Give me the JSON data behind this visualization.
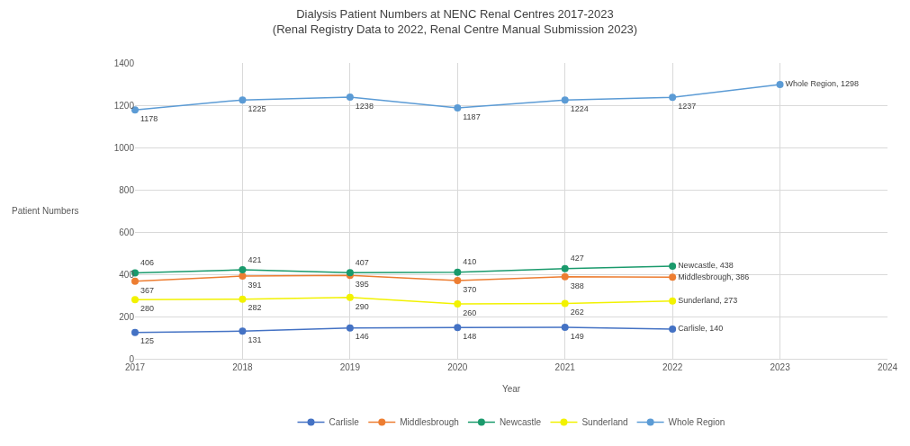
{
  "chart_data": {
    "type": "line",
    "title": "Dialysis Patient Numbers at NENC Renal Centres 2017-2023",
    "subtitle": "(Renal Registry Data to 2022, Renal Centre Manual Submission 2023)",
    "xlabel": "Year",
    "ylabel": "Patient Numbers",
    "x": [
      2017,
      2018,
      2019,
      2020,
      2021,
      2022,
      2023
    ],
    "xlim": [
      2017,
      2024
    ],
    "xticks": [
      2017,
      2018,
      2019,
      2020,
      2021,
      2022,
      2023,
      2024
    ],
    "ylim": [
      0,
      1400
    ],
    "yticks": [
      0,
      200,
      400,
      600,
      800,
      1000,
      1200,
      1400
    ],
    "grid": true,
    "legend": "bottom",
    "marker": "circle",
    "line_style": "solid",
    "series": [
      {
        "name": "Carlisle",
        "color": "#4472c4",
        "values": [
          125,
          131,
          146,
          148,
          149,
          140,
          null
        ],
        "value_labels": [
          "125",
          "131",
          "146",
          "148",
          "149",
          "Carlisle, 140",
          null
        ]
      },
      {
        "name": "Middlesbrough",
        "color": "#ed7d31",
        "values": [
          367,
          391,
          395,
          370,
          388,
          386,
          null
        ],
        "value_labels": [
          "367",
          "391",
          "395",
          "370",
          "388",
          "Middlesbrough, 386",
          null
        ]
      },
      {
        "name": "Newcastle",
        "color": "#1a9a6c",
        "values": [
          406,
          421,
          407,
          410,
          427,
          438,
          null
        ],
        "value_labels": [
          "406",
          "421",
          "407",
          "410",
          "427",
          "Newcastle, 438",
          null
        ]
      },
      {
        "name": "Sunderland",
        "color": "#f2f200",
        "values": [
          280,
          282,
          290,
          260,
          262,
          273,
          null
        ],
        "value_labels": [
          "280",
          "282",
          "290",
          "260",
          "262",
          "Sunderland, 273",
          null
        ]
      },
      {
        "name": "Whole Region",
        "color": "#5b9bd5",
        "values": [
          1178,
          1225,
          1238,
          1187,
          1224,
          1237,
          1298
        ],
        "value_labels": [
          "1178",
          "1225",
          "1238",
          "1187",
          "1224",
          "1237",
          "Whole Region, 1298"
        ]
      }
    ]
  }
}
